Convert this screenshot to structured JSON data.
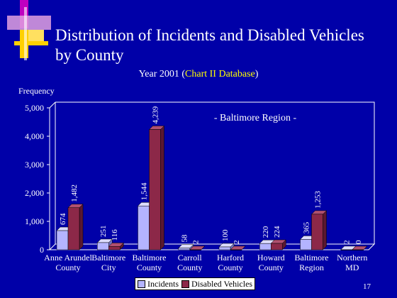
{
  "slide": {
    "title_line1": "Distribution of Incidents and Disabled Vehicles",
    "title_line2": "by County",
    "subtitle_prefix": "Year 2001 (",
    "subtitle_highlight": "Chart II Database",
    "subtitle_suffix": ")",
    "page_number": "17"
  },
  "colors": {
    "background": "#0000a8",
    "incidents": "#b4b4ff",
    "disabled_vehicles": "#8c2848",
    "highlight_text": "#ffff00"
  },
  "chart_data": {
    "type": "bar",
    "ylabel": "Frequency",
    "annotation": "- Baltimore Region -",
    "ylim": [
      0,
      5000
    ],
    "yticks": [
      "0",
      "1,000",
      "2,000",
      "3,000",
      "4,000",
      "5,000"
    ],
    "categories": [
      [
        "Anne Arundel",
        "County"
      ],
      [
        "Baltimore",
        "City"
      ],
      [
        "Baltimore",
        "County"
      ],
      [
        "Carroll",
        "County"
      ],
      [
        "Harford",
        "County"
      ],
      [
        "Howard",
        "County"
      ],
      [
        "Baltimore",
        "Region"
      ],
      [
        "Northern",
        "MD"
      ]
    ],
    "series": [
      {
        "name": "Incidents",
        "values": [
          674,
          251,
          1544,
          58,
          100,
          220,
          365,
          2
        ],
        "labels": [
          "674",
          "251",
          "1,544",
          "58",
          "100",
          "220",
          "365",
          "2"
        ]
      },
      {
        "name": "Disabled Vehicles",
        "values": [
          1482,
          116,
          4239,
          2,
          2,
          224,
          1253,
          0
        ],
        "labels": [
          "1,482",
          "116",
          "4,239",
          "2",
          "2",
          "224",
          "1,253",
          "0"
        ]
      }
    ],
    "legend_position": "bottom-center",
    "grid": false
  }
}
